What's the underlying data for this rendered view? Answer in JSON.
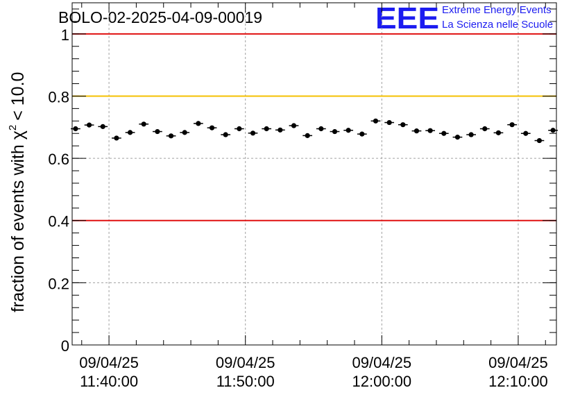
{
  "colors": {
    "threshold_low": "#e01010",
    "threshold_high": "#e01010",
    "threshold_mid": "#f5c000",
    "logo": "#1c1cf0",
    "markers": "#000000",
    "grid": "#a0a0a0"
  },
  "logo": {
    "letters": "EEE",
    "line1": "Extreme Energy Events",
    "line2": "La Scienza nelle Scuole"
  },
  "chart_data": {
    "type": "scatter",
    "title": "BOLO-02-2025-04-09-00019",
    "xlabel": "",
    "ylabel": "fraction of events with",
    "ylabel_symbol": "χ",
    "ylabel_superscript": "2",
    "ylabel_suffix": "< 10.0",
    "xlim_minutes": [
      -2.7,
      32.8
    ],
    "ylim": [
      0,
      1.1
    ],
    "yticks": [
      0,
      0.2,
      0.4,
      0.6,
      0.8,
      1
    ],
    "ytick_labels": [
      "0",
      "0.2",
      "0.4",
      "0.6",
      "0.8",
      "1"
    ],
    "xticks_minutes": [
      0,
      10,
      20,
      30
    ],
    "xtick_labels": [
      {
        "date": "09/04/25",
        "time": "11:40:00"
      },
      {
        "date": "09/04/25",
        "time": "11:50:00"
      },
      {
        "date": "09/04/25",
        "time": "12:00:00"
      },
      {
        "date": "09/04/25",
        "time": "12:10:00"
      }
    ],
    "x_reference": "11:40:00",
    "bin_halfwidth_minutes": 0.35,
    "error": 0.007,
    "reference_lines": [
      {
        "y": 1.0,
        "color": "red"
      },
      {
        "y": 0.8,
        "color": "gold"
      },
      {
        "y": 0.4,
        "color": "red"
      }
    ],
    "x_minutes": [
      -2.45,
      -1.45,
      -0.45,
      0.55,
      1.55,
      2.55,
      3.55,
      4.55,
      5.55,
      6.55,
      7.55,
      8.55,
      9.55,
      10.55,
      11.55,
      12.55,
      13.55,
      14.55,
      15.55,
      16.55,
      17.55,
      18.55,
      19.55,
      20.55,
      21.55,
      22.55,
      23.55,
      24.55,
      25.55,
      26.55,
      27.55,
      28.55,
      29.55,
      30.55,
      31.55,
      32.55
    ],
    "values": [
      0.695,
      0.707,
      0.702,
      0.665,
      0.683,
      0.71,
      0.686,
      0.672,
      0.683,
      0.712,
      0.698,
      0.676,
      0.695,
      0.681,
      0.695,
      0.691,
      0.705,
      0.673,
      0.695,
      0.686,
      0.69,
      0.678,
      0.72,
      0.715,
      0.708,
      0.688,
      0.689,
      0.68,
      0.668,
      0.676,
      0.695,
      0.682,
      0.708,
      0.68,
      0.657,
      0.69
    ]
  }
}
